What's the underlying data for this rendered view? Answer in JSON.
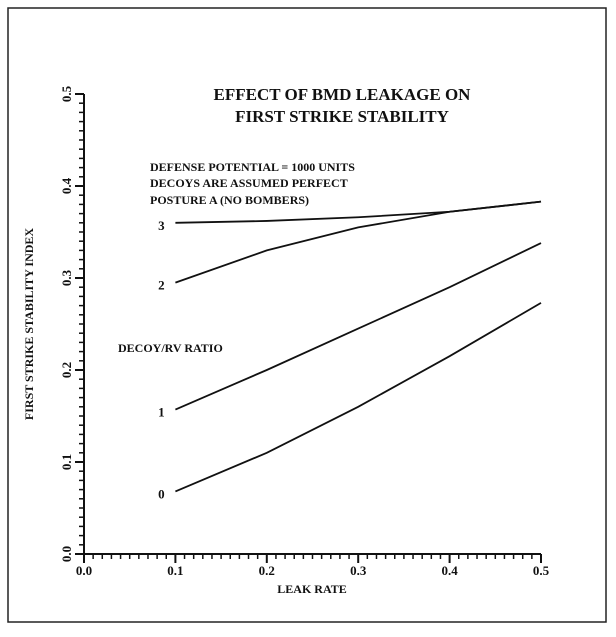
{
  "chart_data": {
    "type": "line",
    "title": [
      "EFFECT OF BMD LEAKAGE ON",
      "FIRST STRIKE STABILITY"
    ],
    "annotations": [
      "DEFENSE POTENTIAL = 1000 UNITS",
      "DECOYS ARE ASSUMED PERFECT",
      "POSTURE A  (NO BOMBERS)"
    ],
    "legend_title": "DECOY/RV RATIO",
    "x_label": "LEAK RATE",
    "y_label": "FIRST STRIKE STABILITY INDEX",
    "x": [
      0.1,
      0.2,
      0.3,
      0.4,
      0.5
    ],
    "series": [
      {
        "name": "3",
        "color": "#111111",
        "values": [
          0.36,
          0.362,
          0.366,
          0.372,
          0.383
        ]
      },
      {
        "name": "2",
        "color": "#111111",
        "values": [
          0.295,
          0.33,
          0.355,
          0.372,
          0.383
        ]
      },
      {
        "name": "1",
        "color": "#111111",
        "values": [
          0.157,
          0.2,
          0.245,
          0.29,
          0.338
        ]
      },
      {
        "name": "0",
        "color": "#111111",
        "values": [
          0.068,
          0.11,
          0.16,
          0.215,
          0.273
        ]
      }
    ],
    "xlim": [
      0,
      0.5
    ],
    "ylim": [
      0,
      0.5
    ],
    "xticks": [
      {
        "value": 0,
        "label": "0.0"
      },
      0.1,
      0.2,
      0.3,
      0.4,
      0.5
    ],
    "yticks": [
      {
        "value": 0,
        "label": "0.0"
      },
      0.1,
      0.2,
      0.3,
      0.4,
      0.5
    ]
  }
}
